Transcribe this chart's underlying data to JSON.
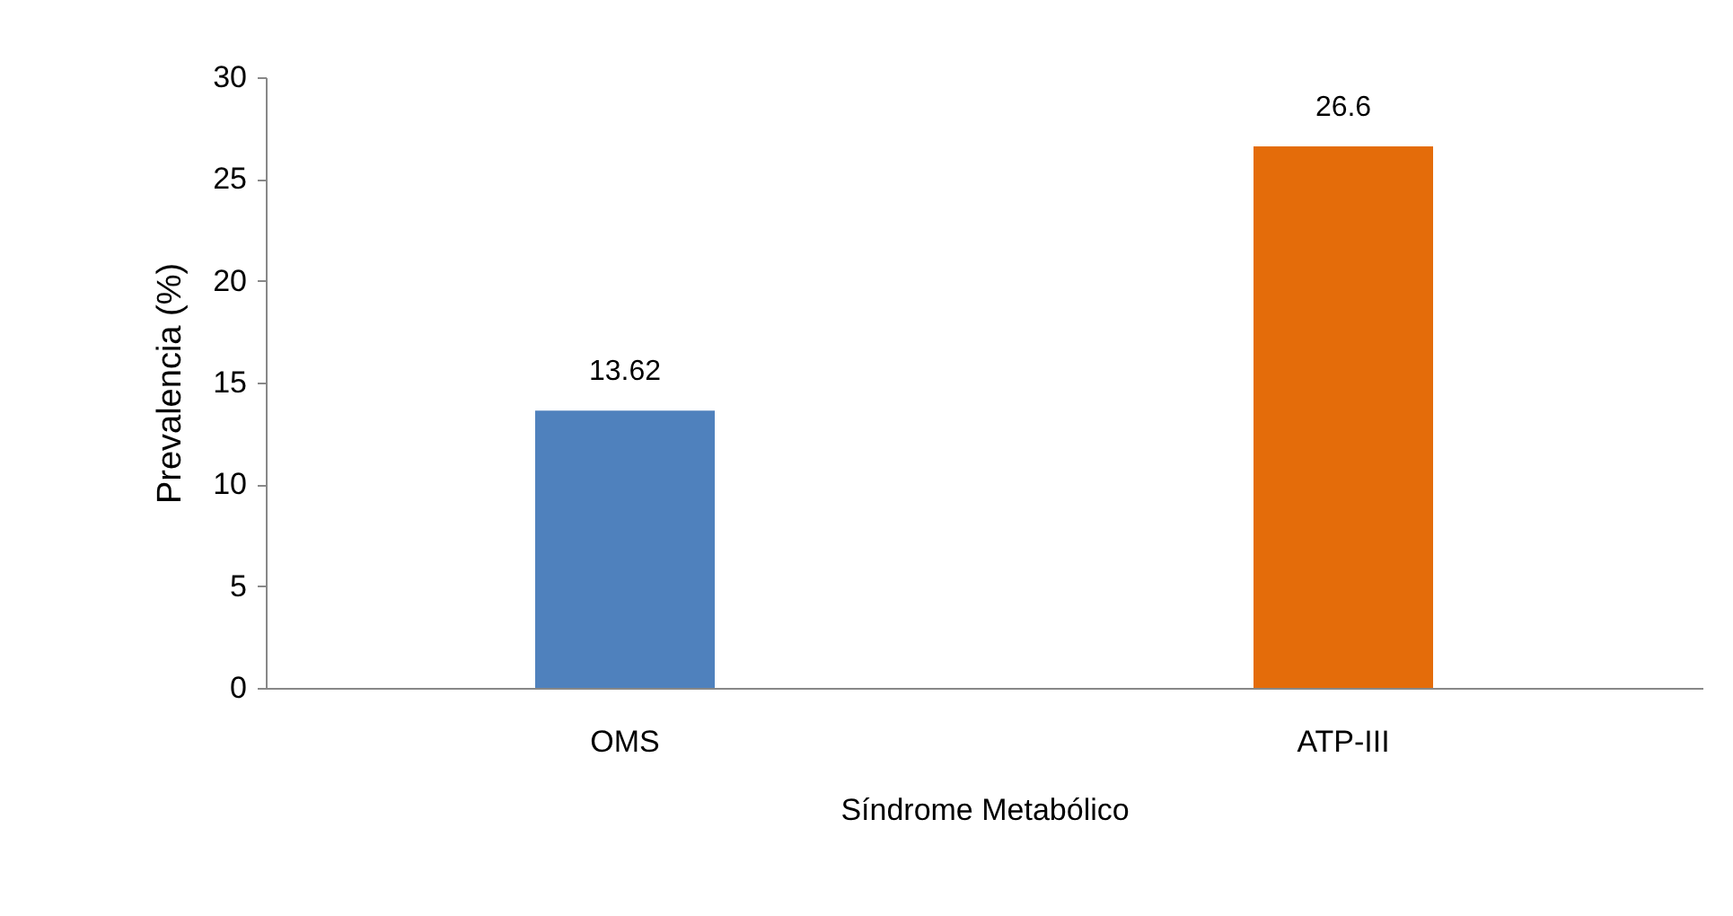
{
  "chart_data": {
    "type": "bar",
    "xlabel": "Síndrome Metabólico",
    "ylabel": "Prevalencia (%)",
    "categories": [
      "OMS",
      "ATP-III"
    ],
    "values": [
      13.62,
      26.6
    ],
    "colors": [
      "#4f81bd",
      "#e46c0a"
    ],
    "ylim": [
      0,
      30
    ],
    "yticks": [
      0,
      5,
      10,
      15,
      20,
      25,
      30
    ],
    "grid": false,
    "data_labels": true
  }
}
